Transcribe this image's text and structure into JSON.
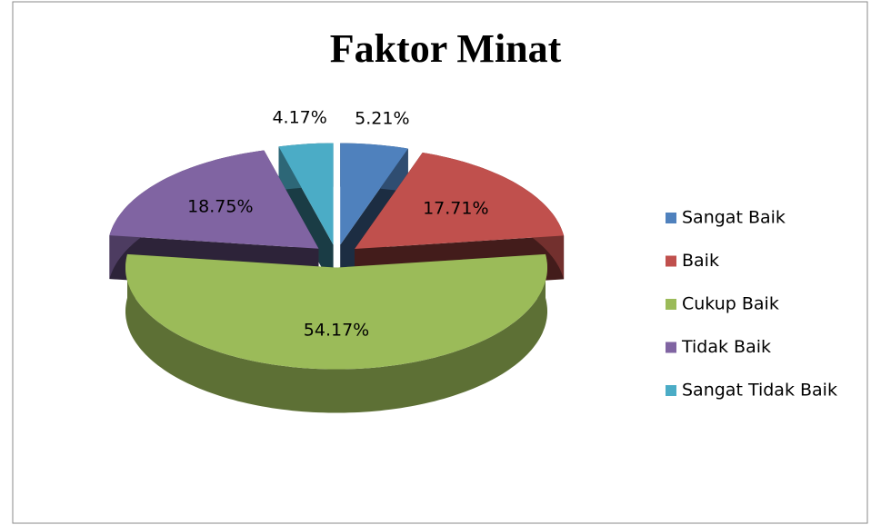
{
  "chart_data": {
    "type": "pie",
    "title": "Faktor Minat",
    "categories": [
      "Sangat Baik",
      "Baik",
      "Cukup Baik",
      "Tidak Baik",
      "Sangat Tidak Baik"
    ],
    "values": [
      5.21,
      17.71,
      54.17,
      18.75,
      4.17
    ],
    "value_labels": [
      "5.21%",
      "17.71%",
      "54.17%",
      "18.75%",
      "4.17%"
    ],
    "colors": [
      "#4f81bd",
      "#c0504d",
      "#9bbb59",
      "#8064a2",
      "#4bacc6"
    ],
    "legend": "right"
  }
}
